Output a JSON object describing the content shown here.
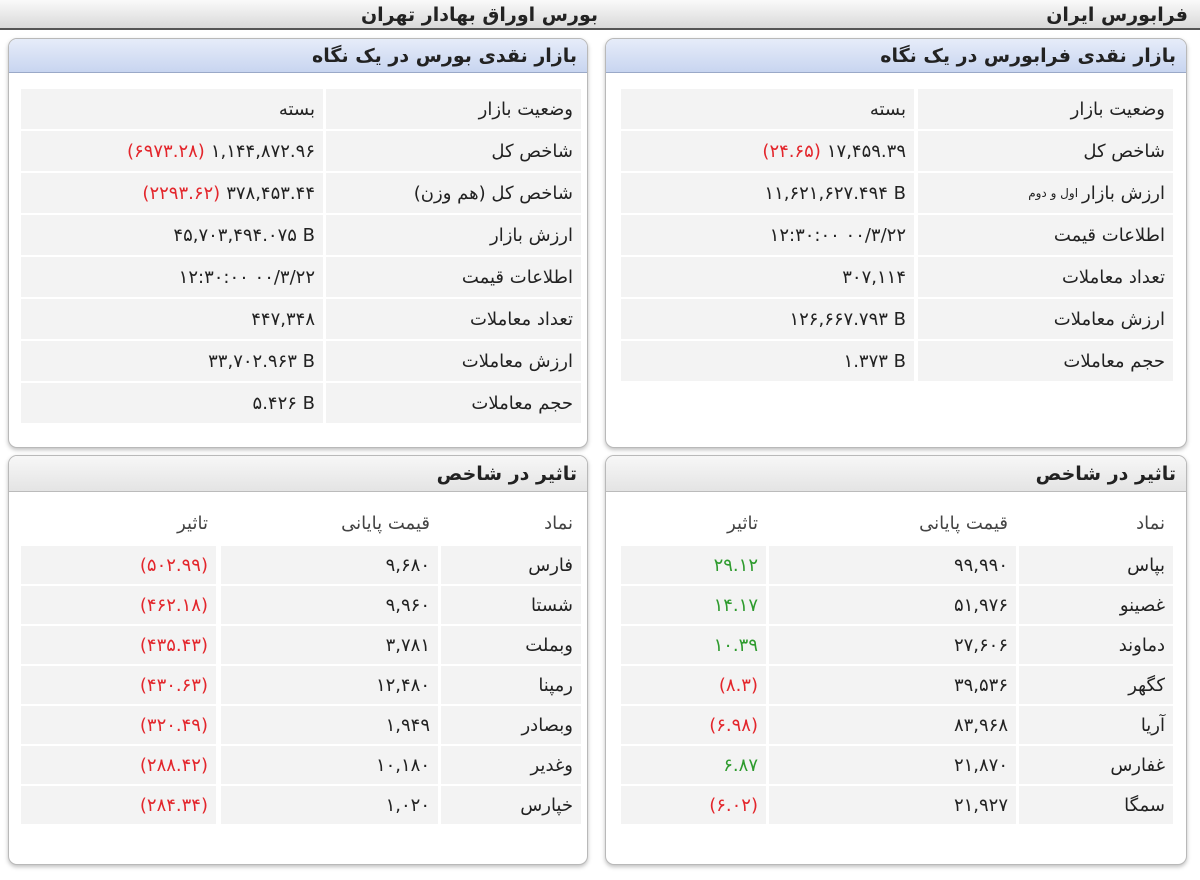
{
  "header": {
    "right_title": "فرابورس ایران",
    "left_title": "بورس اوراق بهادار تهران"
  },
  "panels": {
    "ifb_overview": {
      "title": "بازار نقدی فرابورس در یک نگاه",
      "change_color": "#e3262c",
      "rows": [
        {
          "label": "وضعیت بازار",
          "value": "بسته"
        },
        {
          "label": "شاخص کل",
          "value": "۱۷,۴۵۹.۳۹",
          "change": "(۲۴.۶۵)"
        },
        {
          "label": "ارزش بازار",
          "label_note": "اول و دوم",
          "value": "۱۱,۶۲۱,۶۲۷.۴۹۴ B"
        },
        {
          "label": "اطلاعات قیمت",
          "value": "۱۲:۳۰:۰۰ ۰۰/۳/۲۲"
        },
        {
          "label": "تعداد معاملات",
          "value": "۳۰۷,۱۱۴"
        },
        {
          "label": "ارزش معاملات",
          "value": "۱۲۶,۶۶۷.۷۹۳ B"
        },
        {
          "label": "حجم معاملات",
          "value": "۱.۳۷۳ B"
        }
      ]
    },
    "tse_overview": {
      "title": "بازار نقدی بورس در یک نگاه",
      "change_color": "#e3262c",
      "rows": [
        {
          "label": "وضعیت بازار",
          "value": "بسته"
        },
        {
          "label": "شاخص کل",
          "value": "۱,۱۴۴,۸۷۲.۹۶",
          "change": "(۶۹۷۳.۲۸)"
        },
        {
          "label": "شاخص کل (هم وزن)",
          "value": "۳۷۸,۴۵۳.۴۴",
          "change": "(۲۲۹۳.۶۲)"
        },
        {
          "label": "ارزش بازار",
          "value": "۴۵,۷۰۳,۴۹۴.۰۷۵ B"
        },
        {
          "label": "اطلاعات قیمت",
          "value": "۱۲:۳۰:۰۰ ۰۰/۳/۲۲"
        },
        {
          "label": "تعداد معاملات",
          "value": "۴۴۷,۳۴۸"
        },
        {
          "label": "ارزش معاملات",
          "value": "۳۳,۷۰۲.۹۶۳ B"
        },
        {
          "label": "حجم معاملات",
          "value": "۵.۴۲۶ B"
        }
      ]
    },
    "ifb_impact": {
      "title": "تاثیر در شاخص",
      "columns": [
        "نماد",
        "قیمت پایانی",
        "تاثیر"
      ],
      "rows": [
        {
          "symbol": "بپاس",
          "price": "۹۹,۹۹۰",
          "impact": "۲۹.۱۲",
          "color": "#2e9b2e"
        },
        {
          "symbol": "غصینو",
          "price": "۵۱,۹۷۶",
          "impact": "۱۴.۱۷",
          "color": "#2e9b2e"
        },
        {
          "symbol": "دماوند",
          "price": "۲۷,۶۰۶",
          "impact": "۱۰.۳۹",
          "color": "#2e9b2e"
        },
        {
          "symbol": "کگهر",
          "price": "۳۹,۵۳۶",
          "impact": "(۸.۳)",
          "color": "#e3262c"
        },
        {
          "symbol": "آریا",
          "price": "۸۳,۹۶۸",
          "impact": "(۶.۹۸)",
          "color": "#e3262c"
        },
        {
          "symbol": "غفارس",
          "price": "۲۱,۸۷۰",
          "impact": "۶.۸۷",
          "color": "#2e9b2e"
        },
        {
          "symbol": "سمگا",
          "price": "۲۱,۹۲۷",
          "impact": "(۶.۰۲)",
          "color": "#e3262c"
        }
      ]
    },
    "tse_impact": {
      "title": "تاثیر در شاخص",
      "columns": [
        "نماد",
        "قیمت پایانی",
        "تاثیر"
      ],
      "rows": [
        {
          "symbol": "فارس",
          "price": "۹,۶۸۰",
          "impact": "(۵۰۲.۹۹)",
          "color": "#e3262c"
        },
        {
          "symbol": "شستا",
          "price": "۹,۹۶۰",
          "impact": "(۴۶۲.۱۸)",
          "color": "#e3262c"
        },
        {
          "symbol": "وبملت",
          "price": "۳,۷۸۱",
          "impact": "(۴۳۵.۴۳)",
          "color": "#e3262c"
        },
        {
          "symbol": "رمپنا",
          "price": "۱۲,۴۸۰",
          "impact": "(۴۳۰.۶۳)",
          "color": "#e3262c"
        },
        {
          "symbol": "وبصادر",
          "price": "۱,۹۴۹",
          "impact": "(۳۲۰.۴۹)",
          "color": "#e3262c"
        },
        {
          "symbol": "وغدیر",
          "price": "۱۰,۱۸۰",
          "impact": "(۲۸۸.۴۲)",
          "color": "#e3262c"
        },
        {
          "symbol": "خپارس",
          "price": "۱,۰۲۰",
          "impact": "(۲۸۴.۳۴)",
          "color": "#e3262c"
        }
      ]
    }
  }
}
